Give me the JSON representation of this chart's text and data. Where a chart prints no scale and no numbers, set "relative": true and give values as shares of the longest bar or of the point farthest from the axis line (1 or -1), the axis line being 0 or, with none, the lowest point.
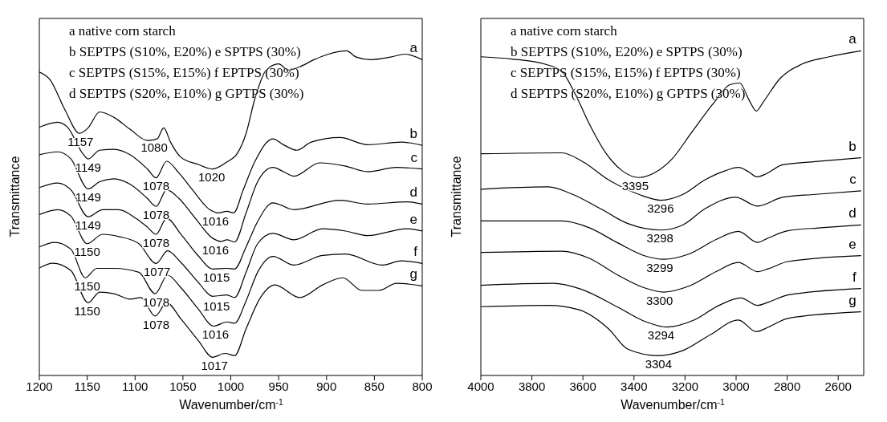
{
  "chart_data": [
    {
      "type": "line",
      "relative": true,
      "xlabel": "Wavenumber/cm$^{-1}$",
      "ylabel": "Transmittance",
      "xlim": [
        1200,
        800
      ],
      "xticks": [
        1200,
        1150,
        1100,
        1050,
        1000,
        950,
        900,
        850,
        800
      ],
      "tick_labels": "x",
      "grid": false,
      "legend": false,
      "marker": "none",
      "line_style": "solid",
      "annotations": [
        "a native corn starch",
        "b SEPTPS (S10%, E20%) e SPTPS (30%)",
        "c SEPTPS (S15%, E15%) f EPTPS (30%)",
        "d SEPTPS (S20%, E10%) g GPTPS (30%)",
        {
          "text": "1157",
          "x": 1157,
          "y": 0.746
        },
        {
          "text": "1080",
          "x": 1080,
          "y": 0.729
        },
        {
          "text": "1020",
          "x": 1020,
          "y": 0.636
        },
        {
          "text": "1149",
          "x": 1149,
          "y": 0.667
        },
        {
          "text": "1078",
          "x": 1078,
          "y": 0.609
        },
        {
          "text": "1016",
          "x": 1016,
          "y": 0.501
        },
        {
          "text": "1149",
          "x": 1149,
          "y": 0.575
        },
        {
          "text": "1078",
          "x": 1078,
          "y": 0.521
        },
        {
          "text": "1016",
          "x": 1016,
          "y": 0.411
        },
        {
          "text": "1149",
          "x": 1149,
          "y": 0.489
        },
        {
          "text": "1078",
          "x": 1078,
          "y": 0.435
        },
        {
          "text": "1015",
          "x": 1015,
          "y": 0.328
        },
        {
          "text": "1150",
          "x": 1150,
          "y": 0.406
        },
        {
          "text": "1077",
          "x": 1077,
          "y": 0.345
        },
        {
          "text": "1015",
          "x": 1015,
          "y": 0.24
        },
        {
          "text": "1150",
          "x": 1150,
          "y": 0.301
        },
        {
          "text": "1078",
          "x": 1078,
          "y": 0.252
        },
        {
          "text": "1016",
          "x": 1016,
          "y": 0.152
        },
        {
          "text": "1150",
          "x": 1150,
          "y": 0.224
        },
        {
          "text": "1078",
          "x": 1078,
          "y": 0.183
        },
        {
          "text": "1017",
          "x": 1017,
          "y": 0.056
        }
      ],
      "series": [
        {
          "name": "a",
          "color": "#000000",
          "x": [
            1200,
            1189,
            1173,
            1158,
            1149,
            1137,
            1122,
            1105,
            1087,
            1077,
            1070,
            1063,
            1052,
            1034,
            1019,
            1004,
            993,
            984,
            975,
            963,
            950,
            940,
            928,
            913,
            898,
            879,
            869,
            854,
            833,
            818,
            800
          ],
          "values": [
            0.935,
            0.912,
            0.817,
            0.746,
            0.763,
            0.812,
            0.795,
            0.758,
            0.724,
            0.729,
            0.763,
            0.719,
            0.672,
            0.65,
            0.636,
            0.658,
            0.685,
            0.746,
            0.851,
            0.941,
            0.96,
            0.941,
            0.951,
            0.973,
            0.99,
            1.0,
            0.981,
            0.973,
            0.981,
            0.99,
            0.973
          ]
        },
        {
          "name": "b",
          "color": "#000000",
          "x": [
            1200,
            1181,
            1170,
            1155,
            1149,
            1137,
            1122,
            1105,
            1087,
            1078,
            1067,
            1054,
            1040,
            1022,
            1013,
            1004,
            997,
            987,
            975,
            956,
            945,
            931,
            916,
            886,
            857,
            822,
            800
          ],
          "values": [
            0.765,
            0.78,
            0.763,
            0.685,
            0.667,
            0.694,
            0.697,
            0.68,
            0.636,
            0.609,
            0.66,
            0.623,
            0.572,
            0.511,
            0.501,
            0.506,
            0.501,
            0.572,
            0.658,
            0.729,
            0.711,
            0.694,
            0.719,
            0.733,
            0.711,
            0.719,
            0.709
          ]
        },
        {
          "name": "c",
          "color": "#000000",
          "x": [
            1200,
            1181,
            1167,
            1149,
            1137,
            1122,
            1105,
            1087,
            1078,
            1067,
            1054,
            1037,
            1019,
            1010,
            1004,
            996,
            984,
            972,
            956,
            945,
            934,
            907,
            880,
            857,
            827,
            800
          ],
          "values": [
            0.68,
            0.689,
            0.667,
            0.575,
            0.597,
            0.606,
            0.589,
            0.545,
            0.521,
            0.572,
            0.545,
            0.484,
            0.423,
            0.413,
            0.418,
            0.411,
            0.501,
            0.597,
            0.641,
            0.628,
            0.614,
            0.655,
            0.645,
            0.628,
            0.641,
            0.636
          ]
        },
        {
          "name": "d",
          "color": "#000000",
          "x": [
            1200,
            1181,
            1167,
            1149,
            1134,
            1117,
            1099,
            1087,
            1078,
            1067,
            1052,
            1034,
            1019,
            1004,
            996,
            984,
            972,
            956,
            934,
            886,
            857,
            816,
            800
          ],
          "values": [
            0.579,
            0.593,
            0.572,
            0.489,
            0.511,
            0.511,
            0.484,
            0.457,
            0.435,
            0.484,
            0.435,
            0.369,
            0.328,
            0.33,
            0.328,
            0.396,
            0.474,
            0.532,
            0.511,
            0.54,
            0.528,
            0.535,
            0.528
          ]
        },
        {
          "name": "e",
          "color": "#000000",
          "x": [
            1200,
            1181,
            1167,
            1150,
            1134,
            1117,
            1096,
            1078,
            1066,
            1052,
            1034,
            1019,
            1004,
            996,
            984,
            972,
            956,
            934,
            904,
            880,
            857,
            816,
            800
          ],
          "values": [
            0.496,
            0.511,
            0.491,
            0.406,
            0.435,
            0.428,
            0.406,
            0.345,
            0.384,
            0.348,
            0.287,
            0.244,
            0.248,
            0.24,
            0.318,
            0.406,
            0.438,
            0.418,
            0.452,
            0.445,
            0.431,
            0.452,
            0.445
          ]
        },
        {
          "name": "f",
          "color": "#000000",
          "x": [
            1200,
            1184,
            1167,
            1152,
            1140,
            1122,
            1096,
            1079,
            1066,
            1052,
            1034,
            1018,
            1004,
            996,
            984,
            972,
            956,
            934,
            904,
            880,
            842,
            822,
            800
          ],
          "values": [
            0.396,
            0.41,
            0.389,
            0.301,
            0.33,
            0.33,
            0.318,
            0.252,
            0.309,
            0.27,
            0.205,
            0.152,
            0.165,
            0.161,
            0.23,
            0.318,
            0.367,
            0.34,
            0.37,
            0.374,
            0.34,
            0.353,
            0.345
          ]
        },
        {
          "name": "g",
          "color": "#000000",
          "x": [
            1200,
            1186,
            1167,
            1149,
            1137,
            1122,
            1105,
            1094,
            1079,
            1067,
            1052,
            1034,
            1019,
            1006,
            996,
            984,
            969,
            954,
            928,
            904,
            883,
            863,
            845,
            827,
            800
          ],
          "values": [
            0.331,
            0.346,
            0.323,
            0.224,
            0.257,
            0.252,
            0.235,
            0.24,
            0.183,
            0.224,
            0.174,
            0.108,
            0.056,
            0.068,
            0.061,
            0.144,
            0.24,
            0.279,
            0.24,
            0.279,
            0.301,
            0.262,
            0.262,
            0.284,
            0.276
          ]
        }
      ]
    },
    {
      "type": "line",
      "relative": true,
      "xlabel": "Wavenumber/cm$^{-1}$",
      "ylabel": "Transmittance",
      "xlim": [
        4000,
        2500
      ],
      "xticks": [
        4000,
        3800,
        3600,
        3400,
        3200,
        3000,
        2800,
        2600
      ],
      "tick_labels": "x",
      "grid": false,
      "legend": false,
      "marker": "none",
      "line_style": "solid",
      "annotations": [
        "a native corn starch",
        "b SEPTPS (S10%, E20%) e SPTPS (30%)",
        "c SEPTPS (S15%, E15%) f EPTPS (30%)",
        "d SEPTPS (S20%, E10%) g GPTPS (30%)",
        {
          "text": "3395",
          "x": 3395,
          "y": 0.61
        },
        {
          "text": "3296",
          "x": 3296,
          "y": 0.54
        },
        {
          "text": "3298",
          "x": 3298,
          "y": 0.448
        },
        {
          "text": "3299",
          "x": 3299,
          "y": 0.358
        },
        {
          "text": "3300",
          "x": 3300,
          "y": 0.257
        },
        {
          "text": "3294",
          "x": 3294,
          "y": 0.149
        },
        {
          "text": "3304",
          "x": 3304,
          "y": 0.061
        }
      ],
      "series": [
        {
          "name": "a",
          "color": "#000000",
          "x": [
            4000,
            3878,
            3748,
            3683,
            3629,
            3575,
            3510,
            3445,
            3381,
            3316,
            3251,
            3175,
            3089,
            3024,
            2986,
            2948,
            2921,
            2894,
            2829,
            2743,
            2635,
            2510
          ],
          "values": [
            0.982,
            0.975,
            0.959,
            0.937,
            0.865,
            0.775,
            0.685,
            0.63,
            0.61,
            0.626,
            0.667,
            0.748,
            0.838,
            0.896,
            0.901,
            0.847,
            0.815,
            0.842,
            0.914,
            0.959,
            0.982,
            1.0
          ]
        },
        {
          "name": "b",
          "color": "#000000",
          "x": [
            4000,
            3683,
            3597,
            3500,
            3381,
            3294,
            3208,
            3121,
            3045,
            2991,
            2948,
            2919,
            2883,
            2818,
            2689,
            2510
          ],
          "values": [
            0.683,
            0.686,
            0.657,
            0.603,
            0.558,
            0.54,
            0.558,
            0.603,
            0.63,
            0.641,
            0.626,
            0.612,
            0.621,
            0.649,
            0.659,
            0.671
          ]
        },
        {
          "name": "c",
          "color": "#000000",
          "x": [
            4000,
            3737,
            3640,
            3532,
            3424,
            3294,
            3208,
            3121,
            3002,
            2916,
            2818,
            2689,
            2510
          ],
          "values": [
            0.574,
            0.581,
            0.558,
            0.514,
            0.468,
            0.448,
            0.464,
            0.514,
            0.549,
            0.522,
            0.549,
            0.558,
            0.569
          ]
        },
        {
          "name": "d",
          "color": "#000000",
          "x": [
            4000,
            3683,
            3575,
            3467,
            3359,
            3283,
            3186,
            3078,
            2991,
            2916,
            2873,
            2797,
            2667,
            2510
          ],
          "values": [
            0.476,
            0.476,
            0.455,
            0.41,
            0.369,
            0.358,
            0.374,
            0.419,
            0.444,
            0.41,
            0.424,
            0.446,
            0.455,
            0.464
          ]
        },
        {
          "name": "e",
          "color": "#000000",
          "x": [
            4000,
            3683,
            3575,
            3467,
            3359,
            3283,
            3186,
            3078,
            2991,
            2916,
            2873,
            2797,
            2510
          ],
          "values": [
            0.379,
            0.383,
            0.361,
            0.311,
            0.27,
            0.257,
            0.275,
            0.32,
            0.348,
            0.32,
            0.329,
            0.351,
            0.369
          ]
        },
        {
          "name": "f",
          "color": "#000000",
          "x": [
            4000,
            3716,
            3608,
            3467,
            3359,
            3272,
            3164,
            3067,
            2981,
            2916,
            2873,
            2797,
            2510
          ],
          "values": [
            0.278,
            0.284,
            0.266,
            0.212,
            0.167,
            0.149,
            0.171,
            0.216,
            0.239,
            0.216,
            0.226,
            0.248,
            0.268
          ]
        },
        {
          "name": "g",
          "color": "#000000",
          "x": [
            4000,
            3737,
            3618,
            3500,
            3424,
            3305,
            3208,
            3100,
            2991,
            2921,
            2873,
            2797,
            2510
          ],
          "values": [
            0.212,
            0.216,
            0.203,
            0.144,
            0.081,
            0.061,
            0.077,
            0.126,
            0.171,
            0.135,
            0.149,
            0.176,
            0.196
          ]
        }
      ]
    }
  ]
}
